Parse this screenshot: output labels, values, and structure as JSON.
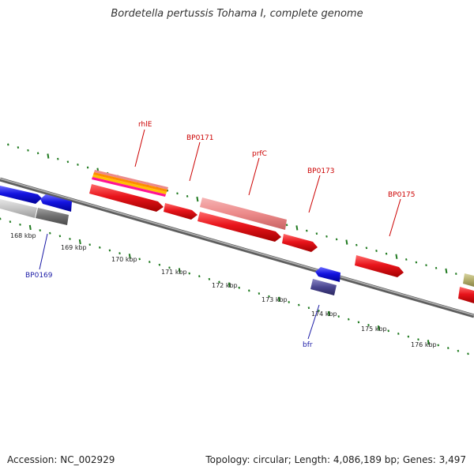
{
  "header": {
    "title": "Bordetella pertussis Tohama I, complete genome"
  },
  "footer": {
    "accession": "Accession: NC_002929",
    "topology": "Topology: circular; Length: 4,086,189 bp; Genes: 3,497"
  },
  "colors": {
    "forward_cds": "#e8141b",
    "reverse_cds": "#1414e0",
    "backbone": "#8a8a8a",
    "tick": "#1f7a1f",
    "label_forward": "#cc0000",
    "label_reverse": "#1a1aa6"
  },
  "kbp_labels": [
    "168 kbp",
    "169 kbp",
    "170 kbp",
    "171 kbp",
    "172 kbp",
    "173 kbp",
    "174 kbp",
    "175 kbp",
    "176 kbp"
  ],
  "gene_labels": [
    {
      "name": "rhlE",
      "strand": "forward"
    },
    {
      "name": "BP0171",
      "strand": "forward"
    },
    {
      "name": "prfC",
      "strand": "forward"
    },
    {
      "name": "BP0173",
      "strand": "forward"
    },
    {
      "name": "BP0175",
      "strand": "forward"
    },
    {
      "name": "BP0169",
      "strand": "reverse"
    },
    {
      "name": "bfr",
      "strand": "reverse"
    }
  ]
}
